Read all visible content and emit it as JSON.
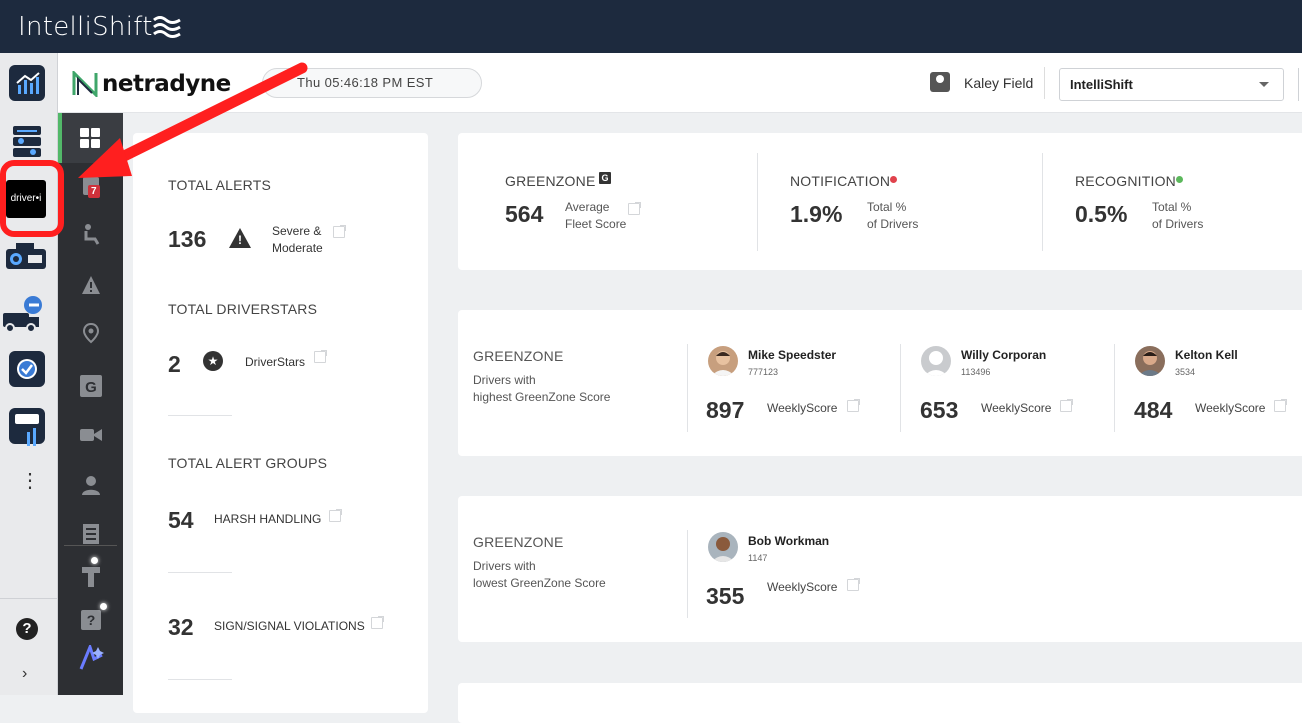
{
  "brand": {
    "name": "IntelliShift"
  },
  "header": {
    "logo_text": "netradyne",
    "clock": "Thu 05:46:18 PM EST",
    "user_name": "Kaley Field",
    "org_selected": "IntelliShift"
  },
  "app_rail": {
    "driveri_label": "driver•i",
    "more_label": "⋮",
    "help_label": "?",
    "expand_label": "›"
  },
  "nav": {
    "alerts_badge": "7"
  },
  "alerts": {
    "total_alerts_label": "TOTAL ALERTS",
    "total_alerts_value": "136",
    "total_alerts_desc_1": "Severe &",
    "total_alerts_desc_2": "Moderate",
    "driverstars_label": "TOTAL DRIVERSTARS",
    "driverstars_value": "2",
    "driverstars_desc": "DriverStars",
    "alert_groups_label": "TOTAL ALERT GROUPS",
    "group1_value": "54",
    "group1_name": "HARSH HANDLING",
    "group2_value": "32",
    "group2_name": "SIGN/SIGNAL VIOLATIONS"
  },
  "scores": {
    "greenzone_label": "GREENZONE",
    "greenzone_badge": "G",
    "greenzone_value": "564",
    "greenzone_sub_1": "Average",
    "greenzone_sub_2": "Fleet Score",
    "notification_label": "NOTIFICATION",
    "notification_value": "1.9%",
    "notification_sub_1": "Total %",
    "notification_sub_2": "of Drivers",
    "recognition_label": "RECOGNITION",
    "recognition_value": "0.5%",
    "recognition_sub_1": "Total %",
    "recognition_sub_2": "of Drivers",
    "colors": {
      "notification_dot": "#e0424c",
      "recognition_dot": "#5cb85c"
    }
  },
  "highest": {
    "title": "GREENZONE",
    "sub_1": "Drivers with",
    "sub_2": "highest GreenZone Score",
    "drivers": [
      {
        "name": "Mike Speedster",
        "id": "777123",
        "score": "897",
        "score_label": "WeeklyScore"
      },
      {
        "name": "Willy Corporan",
        "id": "113496",
        "score": "653",
        "score_label": "WeeklyScore"
      },
      {
        "name": "Kelton Kell",
        "id": "3534",
        "score": "484",
        "score_label": "WeeklyScore"
      }
    ]
  },
  "lowest": {
    "title": "GREENZONE",
    "sub_1": "Drivers with",
    "sub_2": "lowest GreenZone Score",
    "drivers": [
      {
        "name": "Bob Workman",
        "id": "1147",
        "score": "355",
        "score_label": "WeeklyScore"
      }
    ]
  },
  "annotation": {
    "arrow_color": "#ff1f1f",
    "highlight_color": "#ff1f1f"
  }
}
